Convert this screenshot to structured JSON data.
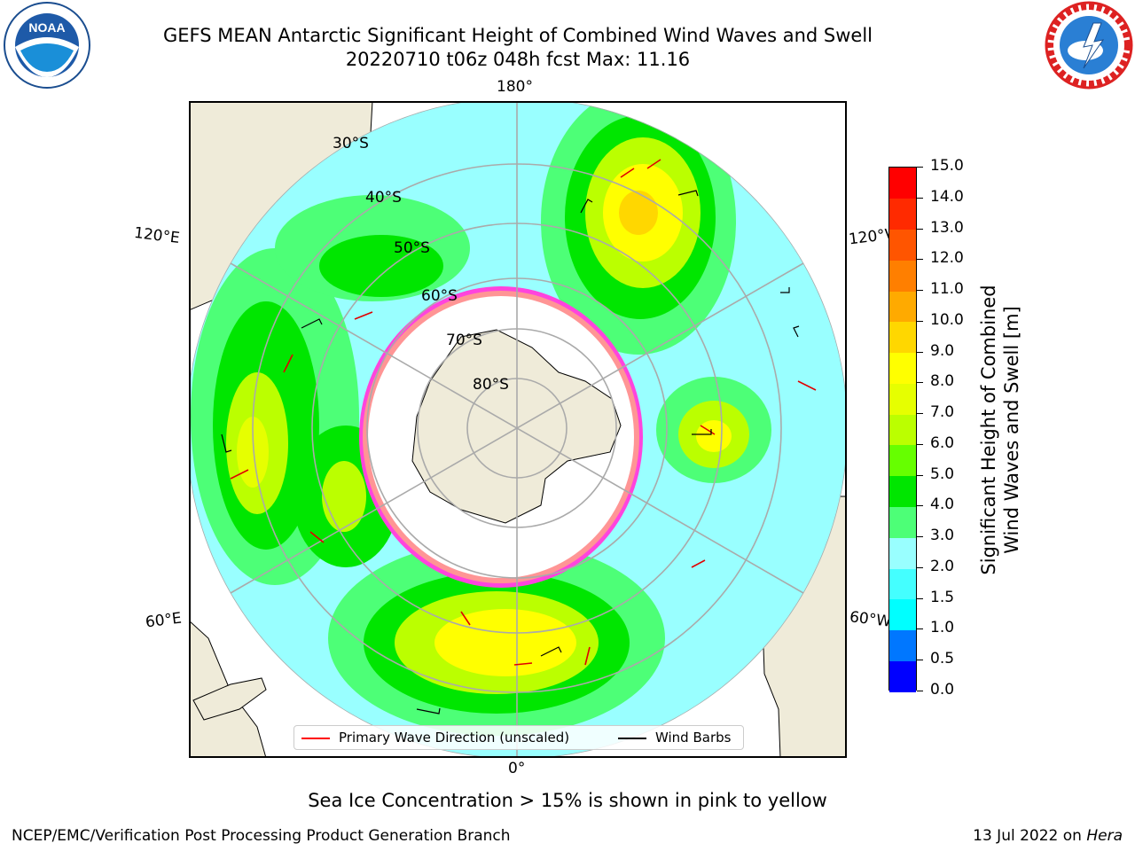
{
  "title_line1": "GEFS MEAN Antarctic Significant Height of Combined Wind Waves and Swell",
  "title_line2": "20220710 t06z 048h fcst   Max: 11.16",
  "subtitle": "Sea Ice Concentration > 15% is shown in pink to yellow",
  "credit": "NCEP/EMC/Verification Post Processing Product Generation Branch",
  "date": "13 Jul 2022 on ",
  "date_machine": "Hera",
  "logos": {
    "left": "noaa-logo",
    "right": "nws-logo"
  },
  "longitude_labels": [
    "180°",
    "120°E",
    "120°W",
    "60°E",
    "60°W",
    "0°"
  ],
  "latitude_labels": [
    "30°S",
    "40°S",
    "50°S",
    "60°S",
    "70°S",
    "80°S"
  ],
  "colorbar": {
    "title_line1": "Significant Height of Combined",
    "title_line2": "Wind Waves and Swell [m]",
    "ticks": [
      "0.0",
      "0.5",
      "1.0",
      "1.5",
      "2.0",
      "3.0",
      "4.0",
      "5.0",
      "6.0",
      "7.0",
      "8.0",
      "9.0",
      "10.0",
      "11.0",
      "12.0",
      "13.0",
      "14.0",
      "15.0"
    ],
    "colors": [
      "#0000ff",
      "#0077ff",
      "#00ffff",
      "#44ffff",
      "#99ffff",
      "#4dff77",
      "#00e600",
      "#66ff00",
      "#bbff00",
      "#e6ff00",
      "#ffff00",
      "#ffd700",
      "#ffaa00",
      "#ff7f00",
      "#ff5500",
      "#ff2a00",
      "#ff0000"
    ]
  },
  "legend": {
    "primary_wave": "Primary Wave Direction (unscaled)",
    "wind_barbs": "Wind Barbs",
    "primary_wave_color": "#ff0000",
    "wind_barbs_color": "#000000"
  },
  "map": {
    "ocean_color": "#99ffff",
    "land_color": "#efebd9",
    "ice_color": "#ff44dd",
    "grid_color": "#aaaaaa"
  }
}
